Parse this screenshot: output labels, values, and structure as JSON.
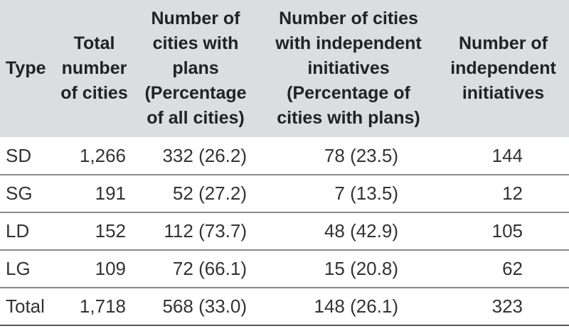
{
  "headers": [
    "Type",
    "Total number of cities",
    "Number of cities with plans (Percentage of all cities)",
    "Number of cities with independent initiatives (Percentage of cities with plans)",
    "Number of independent initiatives"
  ],
  "rows": [
    [
      "SD",
      "1,266",
      "332 (26.2)",
      "78 (23.5)",
      "144"
    ],
    [
      "SG",
      "191",
      "52 (27.2)",
      "7 (13.5)",
      "12"
    ],
    [
      "LD",
      "152",
      "112 (73.7)",
      "48 (42.9)",
      "105"
    ],
    [
      "LG",
      "109",
      "72 (66.1)",
      "15 (20.8)",
      "62"
    ],
    [
      "Total",
      "1,718",
      "568 (33.0)",
      "148 (26.1)",
      "323"
    ]
  ]
}
